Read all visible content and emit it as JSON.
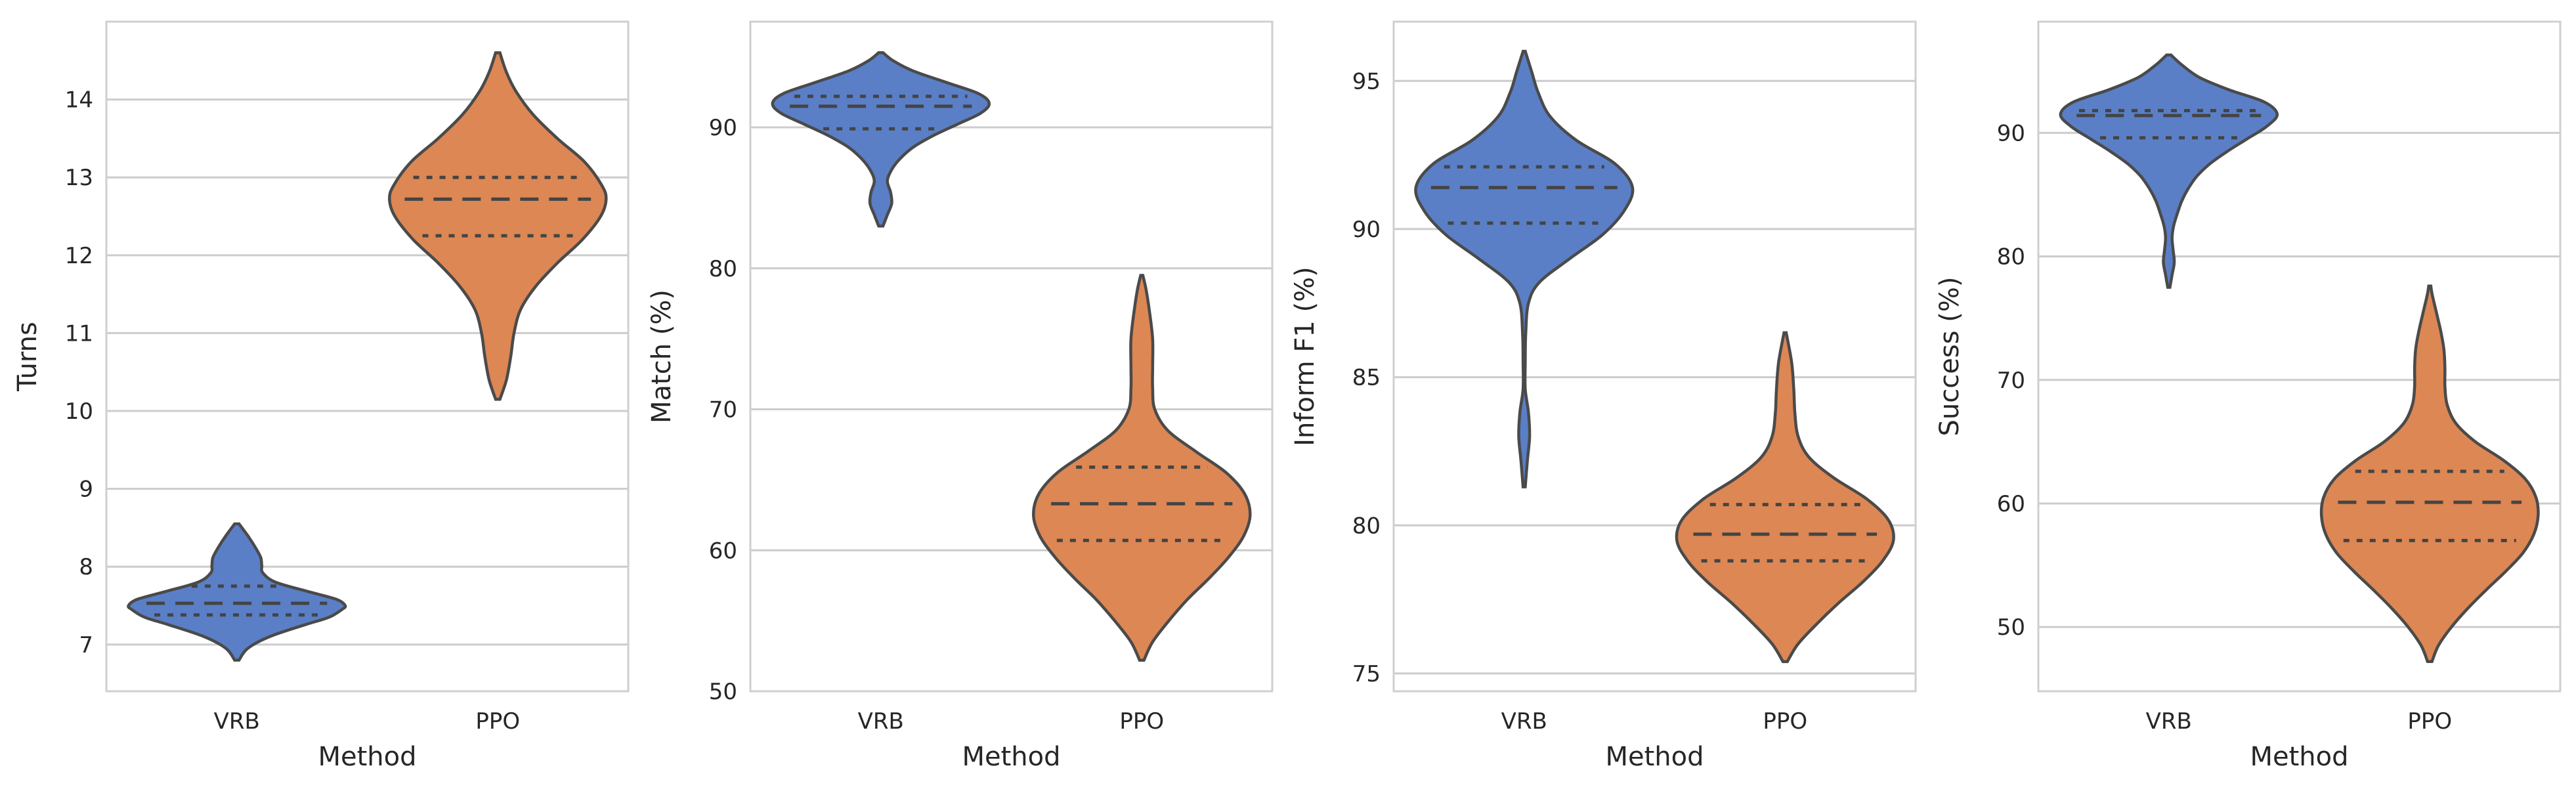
{
  "chart_data": [
    {
      "type": "violin",
      "xlabel": "Method",
      "ylabel": "Turns",
      "categories": [
        "VRB",
        "PPO"
      ],
      "ylim": [
        6.4,
        15.0
      ],
      "yticks": [
        7,
        8,
        9,
        10,
        11,
        12,
        13,
        14
      ],
      "grid": true,
      "series": [
        {
          "name": "VRB",
          "color": "#5a7fc7",
          "min": 6.8,
          "max": 8.55,
          "q1": 7.38,
          "median": 7.53,
          "q3": 7.75,
          "density": [
            [
              6.8,
              0.02
            ],
            [
              6.95,
              0.1
            ],
            [
              7.1,
              0.3
            ],
            [
              7.25,
              0.62
            ],
            [
              7.35,
              0.85
            ],
            [
              7.45,
              0.97
            ],
            [
              7.5,
              1.0
            ],
            [
              7.58,
              0.92
            ],
            [
              7.68,
              0.66
            ],
            [
              7.8,
              0.36
            ],
            [
              7.92,
              0.24
            ],
            [
              8.02,
              0.23
            ],
            [
              8.12,
              0.22
            ],
            [
              8.25,
              0.17
            ],
            [
              8.4,
              0.1
            ],
            [
              8.55,
              0.02
            ]
          ]
        },
        {
          "name": "PPO",
          "color": "#dd8754",
          "min": 10.15,
          "max": 14.6,
          "q1": 12.25,
          "median": 12.72,
          "q3": 13.0,
          "density": [
            [
              10.15,
              0.02
            ],
            [
              10.4,
              0.08
            ],
            [
              10.7,
              0.12
            ],
            [
              11.0,
              0.15
            ],
            [
              11.3,
              0.21
            ],
            [
              11.6,
              0.35
            ],
            [
              11.9,
              0.55
            ],
            [
              12.2,
              0.78
            ],
            [
              12.5,
              0.95
            ],
            [
              12.72,
              1.0
            ],
            [
              12.9,
              0.96
            ],
            [
              13.2,
              0.8
            ],
            [
              13.5,
              0.55
            ],
            [
              13.8,
              0.33
            ],
            [
              14.1,
              0.17
            ],
            [
              14.35,
              0.08
            ],
            [
              14.6,
              0.02
            ]
          ]
        }
      ]
    },
    {
      "type": "violin",
      "xlabel": "Method",
      "ylabel": "Match (%)",
      "categories": [
        "VRB",
        "PPO"
      ],
      "ylim": [
        50,
        97.5
      ],
      "yticks": [
        50,
        60,
        70,
        80,
        90
      ],
      "grid": true,
      "series": [
        {
          "name": "VRB",
          "color": "#5a7fc7",
          "min": 83.0,
          "max": 95.3,
          "q1": 89.9,
          "median": 91.5,
          "q3": 92.2,
          "density": [
            [
              83.0,
              0.02
            ],
            [
              83.8,
              0.06
            ],
            [
              84.6,
              0.1
            ],
            [
              85.4,
              0.09
            ],
            [
              86.2,
              0.06
            ],
            [
              87.0,
              0.1
            ],
            [
              87.8,
              0.18
            ],
            [
              88.6,
              0.3
            ],
            [
              89.4,
              0.48
            ],
            [
              90.2,
              0.7
            ],
            [
              91.0,
              0.92
            ],
            [
              91.7,
              1.0
            ],
            [
              92.4,
              0.9
            ],
            [
              93.2,
              0.6
            ],
            [
              94.0,
              0.3
            ],
            [
              94.7,
              0.12
            ],
            [
              95.3,
              0.02
            ]
          ]
        },
        {
          "name": "PPO",
          "color": "#dd8754",
          "min": 52.2,
          "max": 79.5,
          "q1": 60.7,
          "median": 63.3,
          "q3": 65.9,
          "density": [
            [
              52.2,
              0.02
            ],
            [
              53.5,
              0.1
            ],
            [
              55.0,
              0.25
            ],
            [
              56.5,
              0.42
            ],
            [
              58.0,
              0.62
            ],
            [
              59.5,
              0.8
            ],
            [
              61.0,
              0.94
            ],
            [
              62.5,
              1.0
            ],
            [
              64.0,
              0.95
            ],
            [
              65.5,
              0.78
            ],
            [
              67.0,
              0.5
            ],
            [
              68.5,
              0.24
            ],
            [
              70.0,
              0.12
            ],
            [
              71.5,
              0.1
            ],
            [
              73.0,
              0.1
            ],
            [
              75.0,
              0.1
            ],
            [
              77.0,
              0.07
            ],
            [
              78.5,
              0.04
            ],
            [
              79.5,
              0.01
            ]
          ]
        }
      ]
    },
    {
      "type": "violin",
      "xlabel": "Method",
      "ylabel": "Inform F1 (%)",
      "categories": [
        "VRB",
        "PPO"
      ],
      "ylim": [
        74.4,
        97.0
      ],
      "yticks": [
        75,
        80,
        85,
        90,
        95
      ],
      "grid": true,
      "series": [
        {
          "name": "VRB",
          "color": "#5a7fc7",
          "min": 81.3,
          "max": 96.0,
          "q1": 90.2,
          "median": 91.4,
          "q3": 92.1,
          "density": [
            [
              81.3,
              0.01
            ],
            [
              82.2,
              0.03
            ],
            [
              83.0,
              0.05
            ],
            [
              83.8,
              0.04
            ],
            [
              84.6,
              0.01
            ],
            [
              85.5,
              0.01
            ],
            [
              86.5,
              0.015
            ],
            [
              87.5,
              0.04
            ],
            [
              88.2,
              0.14
            ],
            [
              89.0,
              0.42
            ],
            [
              89.8,
              0.72
            ],
            [
              90.6,
              0.92
            ],
            [
              91.4,
              1.0
            ],
            [
              92.2,
              0.84
            ],
            [
              93.0,
              0.48
            ],
            [
              93.8,
              0.24
            ],
            [
              94.6,
              0.13
            ],
            [
              95.3,
              0.07
            ],
            [
              96.0,
              0.01
            ]
          ]
        },
        {
          "name": "PPO",
          "color": "#dd8754",
          "min": 75.4,
          "max": 86.5,
          "q1": 78.8,
          "median": 79.7,
          "q3": 80.7,
          "density": [
            [
              75.4,
              0.02
            ],
            [
              76.0,
              0.12
            ],
            [
              76.7,
              0.3
            ],
            [
              77.4,
              0.5
            ],
            [
              78.1,
              0.72
            ],
            [
              78.8,
              0.9
            ],
            [
              79.5,
              1.0
            ],
            [
              80.2,
              0.95
            ],
            [
              80.9,
              0.75
            ],
            [
              81.6,
              0.45
            ],
            [
              82.3,
              0.22
            ],
            [
              83.0,
              0.12
            ],
            [
              83.8,
              0.09
            ],
            [
              84.6,
              0.08
            ],
            [
              85.5,
              0.06
            ],
            [
              86.5,
              0.01
            ]
          ]
        }
      ]
    },
    {
      "type": "violin",
      "xlabel": "Method",
      "ylabel": "Success (%)",
      "categories": [
        "VRB",
        "PPO"
      ],
      "ylim": [
        44.8,
        99.0
      ],
      "yticks": [
        50,
        60,
        70,
        80,
        90
      ],
      "grid": true,
      "series": [
        {
          "name": "VRB",
          "color": "#5a7fc7",
          "min": 77.5,
          "max": 96.3,
          "q1": 89.6,
          "median": 91.4,
          "q3": 91.8,
          "density": [
            [
              77.5,
              0.01
            ],
            [
              78.5,
              0.03
            ],
            [
              79.5,
              0.05
            ],
            [
              80.5,
              0.04
            ],
            [
              81.5,
              0.03
            ],
            [
              82.5,
              0.045
            ],
            [
              83.5,
              0.08
            ],
            [
              84.5,
              0.12
            ],
            [
              85.5,
              0.18
            ],
            [
              86.5,
              0.26
            ],
            [
              87.5,
              0.38
            ],
            [
              88.5,
              0.54
            ],
            [
              89.5,
              0.72
            ],
            [
              90.5,
              0.9
            ],
            [
              91.5,
              1.0
            ],
            [
              92.5,
              0.88
            ],
            [
              93.5,
              0.55
            ],
            [
              94.5,
              0.28
            ],
            [
              95.5,
              0.12
            ],
            [
              96.3,
              0.02
            ]
          ]
        },
        {
          "name": "PPO",
          "color": "#dd8754",
          "min": 47.2,
          "max": 77.6,
          "q1": 57.0,
          "median": 60.1,
          "q3": 62.6,
          "density": [
            [
              47.2,
              0.02
            ],
            [
              48.5,
              0.08
            ],
            [
              50.0,
              0.2
            ],
            [
              51.5,
              0.35
            ],
            [
              53.0,
              0.52
            ],
            [
              54.5,
              0.7
            ],
            [
              56.0,
              0.86
            ],
            [
              57.5,
              0.96
            ],
            [
              59.0,
              1.0
            ],
            [
              60.5,
              0.98
            ],
            [
              62.0,
              0.88
            ],
            [
              63.5,
              0.68
            ],
            [
              65.0,
              0.42
            ],
            [
              66.5,
              0.24
            ],
            [
              68.0,
              0.16
            ],
            [
              69.5,
              0.14
            ],
            [
              71.0,
              0.14
            ],
            [
              72.5,
              0.13
            ],
            [
              74.0,
              0.1
            ],
            [
              75.5,
              0.06
            ],
            [
              77.0,
              0.02
            ],
            [
              77.6,
              0.01
            ]
          ]
        }
      ]
    }
  ]
}
